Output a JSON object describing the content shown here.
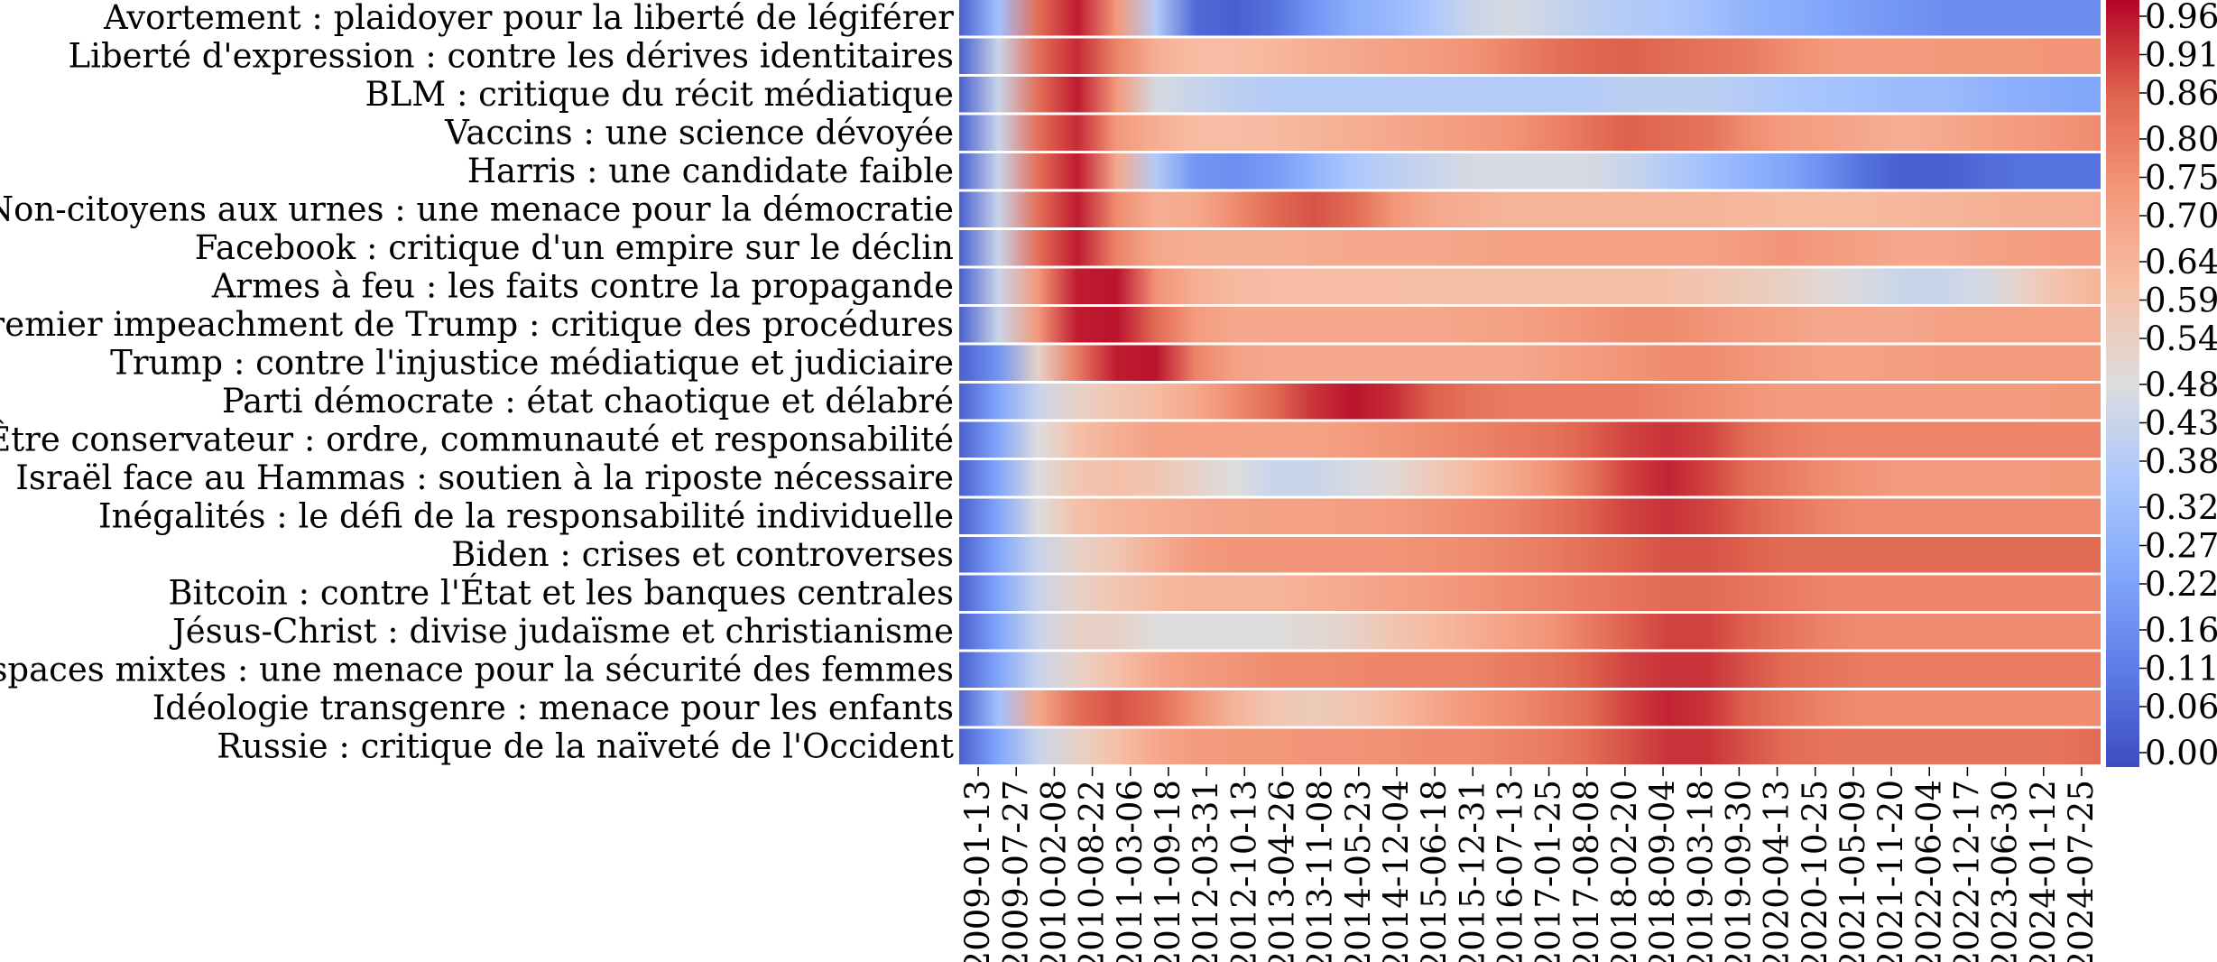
{
  "chart_data": {
    "type": "heatmap",
    "colormap": "coolwarm",
    "color_low": "#3b4cc0",
    "color_mid": "#dddddd",
    "color_high": "#b40426",
    "rows": [
      "Avortement : plaidoyer pour la liberté de légiférer",
      "Liberté d'expression : contre les dérives identitaires",
      "BLM : critique du récit médiatique",
      "Vaccins : une science dévoyée",
      "Harris : une candidate faible",
      "Non-citoyens aux urnes : une menace pour la démocratie",
      "Facebook : critique d'un empire sur le déclin",
      "Armes à feu : les faits contre la propagande",
      "Premier impeachment de Trump : critique des procédures",
      "Trump : contre l'injustice médiatique et judiciaire",
      "Parti démocrate : état chaotique et délabré",
      "Être conservateur : ordre, communauté et responsabilité",
      "Israël face au Hammas : soutien à la riposte nécessaire",
      "Inégalités : le défi de la responsabilité individuelle",
      "Biden : crises et controverses",
      "Bitcoin : contre l'État et les banques centrales",
      "Jésus-Christ : divise judaïsme et christianisme",
      "Espaces mixtes : une menace pour la sécurité des femmes",
      "Idéologie transgenre : menace pour les enfants",
      "Russie : critique de la naïveté de l'Occident"
    ],
    "x_ticks": [
      "2009-01-13",
      "2009-07-27",
      "2010-02-08",
      "2010-08-22",
      "2011-03-06",
      "2011-09-18",
      "2012-03-31",
      "2012-10-13",
      "2013-04-26",
      "2013-11-08",
      "2014-05-23",
      "2014-12-04",
      "2015-06-18",
      "2015-12-31",
      "2016-07-13",
      "2017-01-25",
      "2017-08-08",
      "2018-02-20",
      "2018-09-04",
      "2019-03-18",
      "2019-09-30",
      "2020-04-13",
      "2020-10-25",
      "2021-05-09",
      "2021-11-20",
      "2022-06-04",
      "2022-12-17",
      "2023-06-30",
      "2024-01-12",
      "2024-07-25"
    ],
    "values": [
      [
        0.05,
        0.35,
        0.85,
        0.97,
        0.75,
        0.4,
        0.08,
        0.05,
        0.1,
        0.2,
        0.28,
        0.32,
        0.38,
        0.45,
        0.48,
        0.45,
        0.42,
        0.4,
        0.38,
        0.35,
        0.3,
        0.28,
        0.25,
        0.22,
        0.2,
        0.18,
        0.18,
        0.18,
        0.18,
        0.18
      ],
      [
        0.05,
        0.45,
        0.85,
        0.95,
        0.8,
        0.68,
        0.63,
        0.63,
        0.65,
        0.68,
        0.7,
        0.72,
        0.74,
        0.76,
        0.8,
        0.84,
        0.87,
        0.88,
        0.86,
        0.84,
        0.82,
        0.78,
        0.75,
        0.74,
        0.74,
        0.75,
        0.75,
        0.75,
        0.76,
        0.76
      ],
      [
        0.05,
        0.45,
        0.85,
        0.97,
        0.75,
        0.48,
        0.45,
        0.42,
        0.4,
        0.4,
        0.4,
        0.4,
        0.4,
        0.4,
        0.4,
        0.4,
        0.4,
        0.42,
        0.42,
        0.42,
        0.4,
        0.38,
        0.36,
        0.35,
        0.33,
        0.33,
        0.3,
        0.28,
        0.26,
        0.25
      ],
      [
        0.05,
        0.45,
        0.85,
        0.95,
        0.75,
        0.68,
        0.63,
        0.63,
        0.64,
        0.66,
        0.68,
        0.7,
        0.72,
        0.74,
        0.76,
        0.8,
        0.84,
        0.88,
        0.86,
        0.84,
        0.78,
        0.74,
        0.72,
        0.7,
        0.68,
        0.7,
        0.72,
        0.74,
        0.76,
        0.78
      ],
      [
        0.05,
        0.45,
        0.85,
        0.97,
        0.7,
        0.4,
        0.2,
        0.18,
        0.22,
        0.3,
        0.38,
        0.42,
        0.45,
        0.48,
        0.48,
        0.48,
        0.48,
        0.45,
        0.4,
        0.35,
        0.3,
        0.25,
        0.18,
        0.1,
        0.05,
        0.05,
        0.08,
        0.1,
        0.1,
        0.1
      ],
      [
        0.05,
        0.45,
        0.85,
        0.97,
        0.78,
        0.68,
        0.7,
        0.78,
        0.86,
        0.9,
        0.86,
        0.76,
        0.7,
        0.68,
        0.66,
        0.66,
        0.66,
        0.66,
        0.66,
        0.66,
        0.65,
        0.64,
        0.64,
        0.64,
        0.65,
        0.66,
        0.67,
        0.68,
        0.68,
        0.69
      ],
      [
        0.05,
        0.45,
        0.85,
        0.97,
        0.8,
        0.7,
        0.68,
        0.68,
        0.68,
        0.69,
        0.7,
        0.7,
        0.7,
        0.71,
        0.72,
        0.72,
        0.72,
        0.72,
        0.72,
        0.72,
        0.74,
        0.76,
        0.74,
        0.72,
        0.7,
        0.7,
        0.72,
        0.73,
        0.74,
        0.74
      ],
      [
        0.05,
        0.45,
        0.75,
        0.97,
        0.98,
        0.76,
        0.68,
        0.64,
        0.63,
        0.63,
        0.63,
        0.63,
        0.62,
        0.62,
        0.62,
        0.62,
        0.62,
        0.62,
        0.62,
        0.6,
        0.58,
        0.56,
        0.52,
        0.48,
        0.45,
        0.45,
        0.48,
        0.55,
        0.62,
        0.66
      ],
      [
        0.05,
        0.45,
        0.75,
        0.97,
        0.98,
        0.86,
        0.74,
        0.7,
        0.7,
        0.7,
        0.7,
        0.7,
        0.7,
        0.71,
        0.72,
        0.74,
        0.76,
        0.78,
        0.78,
        0.76,
        0.74,
        0.72,
        0.7,
        0.7,
        0.7,
        0.72,
        0.72,
        0.72,
        0.72,
        0.72
      ],
      [
        0.05,
        0.2,
        0.55,
        0.82,
        0.97,
        0.98,
        0.8,
        0.72,
        0.7,
        0.7,
        0.7,
        0.7,
        0.7,
        0.7,
        0.7,
        0.72,
        0.74,
        0.76,
        0.78,
        0.78,
        0.76,
        0.74,
        0.72,
        0.72,
        0.73,
        0.74,
        0.74,
        0.74,
        0.74,
        0.74
      ],
      [
        0.05,
        0.25,
        0.45,
        0.55,
        0.6,
        0.64,
        0.7,
        0.78,
        0.86,
        0.94,
        0.98,
        0.95,
        0.88,
        0.84,
        0.82,
        0.82,
        0.82,
        0.82,
        0.8,
        0.78,
        0.76,
        0.74,
        0.74,
        0.74,
        0.74,
        0.74,
        0.74,
        0.74,
        0.75,
        0.75
      ],
      [
        0.05,
        0.25,
        0.5,
        0.62,
        0.68,
        0.72,
        0.72,
        0.72,
        0.72,
        0.72,
        0.74,
        0.76,
        0.78,
        0.8,
        0.82,
        0.84,
        0.88,
        0.92,
        0.94,
        0.92,
        0.86,
        0.82,
        0.8,
        0.8,
        0.8,
        0.8,
        0.8,
        0.8,
        0.8,
        0.8
      ],
      [
        0.05,
        0.25,
        0.5,
        0.6,
        0.62,
        0.6,
        0.55,
        0.5,
        0.45,
        0.45,
        0.48,
        0.52,
        0.58,
        0.64,
        0.7,
        0.76,
        0.84,
        0.92,
        0.96,
        0.92,
        0.86,
        0.82,
        0.78,
        0.76,
        0.74,
        0.74,
        0.74,
        0.74,
        0.75,
        0.75
      ],
      [
        0.05,
        0.25,
        0.5,
        0.62,
        0.66,
        0.68,
        0.7,
        0.71,
        0.72,
        0.72,
        0.73,
        0.74,
        0.76,
        0.78,
        0.8,
        0.84,
        0.88,
        0.92,
        0.94,
        0.92,
        0.88,
        0.84,
        0.8,
        0.78,
        0.78,
        0.78,
        0.78,
        0.78,
        0.78,
        0.78
      ],
      [
        0.05,
        0.25,
        0.45,
        0.55,
        0.6,
        0.68,
        0.74,
        0.76,
        0.76,
        0.76,
        0.76,
        0.76,
        0.77,
        0.78,
        0.8,
        0.82,
        0.85,
        0.88,
        0.9,
        0.9,
        0.88,
        0.86,
        0.86,
        0.86,
        0.86,
        0.86,
        0.86,
        0.86,
        0.86,
        0.86
      ],
      [
        0.05,
        0.25,
        0.45,
        0.55,
        0.6,
        0.64,
        0.66,
        0.66,
        0.66,
        0.68,
        0.7,
        0.72,
        0.74,
        0.76,
        0.78,
        0.8,
        0.82,
        0.84,
        0.86,
        0.86,
        0.84,
        0.82,
        0.8,
        0.8,
        0.8,
        0.8,
        0.8,
        0.8,
        0.8,
        0.8
      ],
      [
        0.05,
        0.25,
        0.45,
        0.55,
        0.55,
        0.5,
        0.5,
        0.5,
        0.5,
        0.52,
        0.55,
        0.6,
        0.64,
        0.68,
        0.72,
        0.76,
        0.82,
        0.88,
        0.92,
        0.92,
        0.88,
        0.84,
        0.8,
        0.78,
        0.78,
        0.78,
        0.78,
        0.78,
        0.78,
        0.78
      ],
      [
        0.05,
        0.25,
        0.45,
        0.55,
        0.62,
        0.7,
        0.74,
        0.76,
        0.78,
        0.78,
        0.79,
        0.8,
        0.8,
        0.8,
        0.82,
        0.84,
        0.88,
        0.92,
        0.94,
        0.94,
        0.9,
        0.86,
        0.84,
        0.82,
        0.82,
        0.82,
        0.82,
        0.82,
        0.82,
        0.82
      ],
      [
        0.05,
        0.35,
        0.7,
        0.85,
        0.9,
        0.86,
        0.76,
        0.66,
        0.6,
        0.58,
        0.6,
        0.64,
        0.7,
        0.75,
        0.78,
        0.82,
        0.86,
        0.92,
        0.96,
        0.94,
        0.88,
        0.84,
        0.8,
        0.78,
        0.78,
        0.78,
        0.78,
        0.78,
        0.78,
        0.78
      ],
      [
        0.05,
        0.25,
        0.45,
        0.55,
        0.62,
        0.7,
        0.74,
        0.75,
        0.75,
        0.76,
        0.76,
        0.77,
        0.78,
        0.78,
        0.8,
        0.82,
        0.86,
        0.9,
        0.94,
        0.94,
        0.9,
        0.86,
        0.84,
        0.84,
        0.84,
        0.84,
        0.84,
        0.84,
        0.84,
        0.86
      ]
    ],
    "colorbar_ticks": [
      "0.00",
      "0.06",
      "0.11",
      "0.16",
      "0.22",
      "0.27",
      "0.32",
      "0.38",
      "0.43",
      "0.48",
      "0.54",
      "0.59",
      "0.64",
      "0.70",
      "0.75",
      "0.80",
      "0.86",
      "0.91",
      "0.96"
    ],
    "colorbar_range": [
      0,
      1
    ],
    "legend": "right",
    "grid": false
  }
}
